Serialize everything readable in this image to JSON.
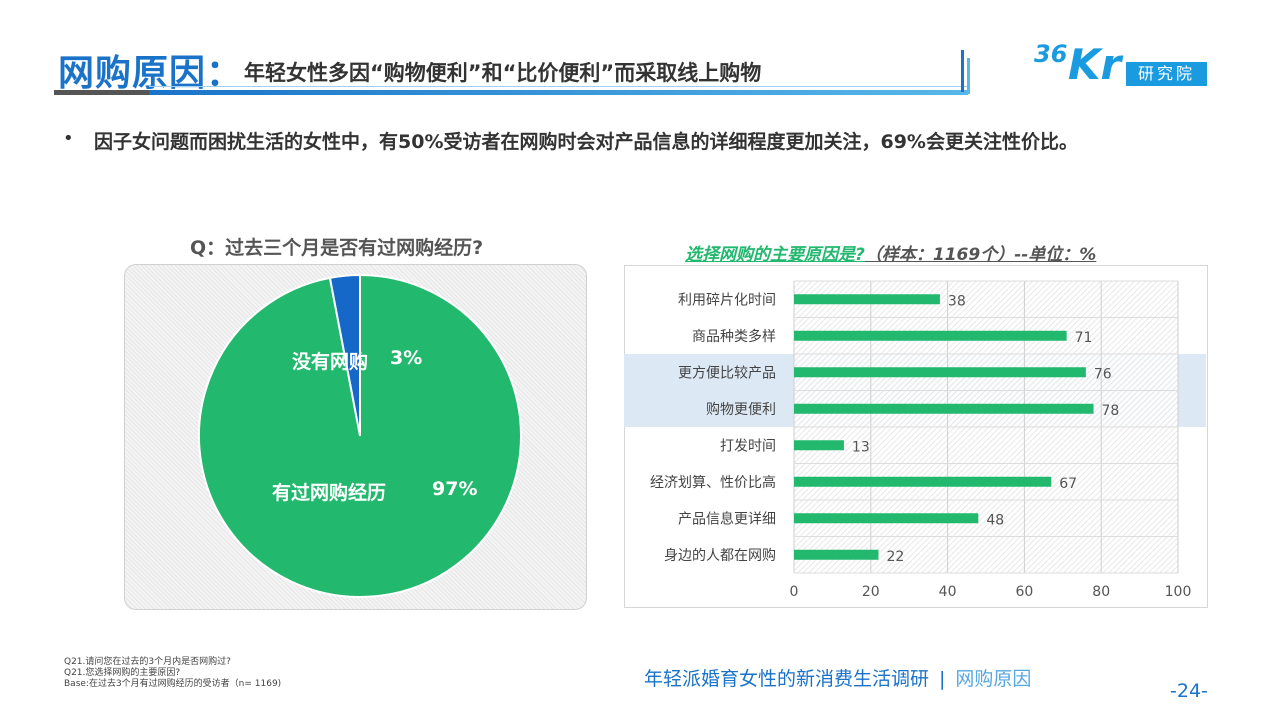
{
  "header": {
    "title_main": "网购原因：",
    "title_sub": "年轻女性多因“购物便利”和“比价便利”而采取线上购物",
    "logo_36": "36",
    "logo_kr": "Kr",
    "logo_box": "研究院"
  },
  "bullet": {
    "dot": "•",
    "text": "因子女问题而困扰生活的女性中，有50%受访者在网购时会对产品信息的详细程度更加关注，69%会更关注性价比。"
  },
  "pie": {
    "title": "Q：过去三个月是否有过网购经历?",
    "label_no": "没有网购",
    "pct_no": "3%",
    "label_yes": "有过网购经历",
    "pct_yes": "97%"
  },
  "bar": {
    "title_q": "选择网购的主要原因是?",
    "title_rest": "（样本：1169个）--单位：%"
  },
  "colors": {
    "green": "#22b86e",
    "blue": "#1668c8",
    "brand": "#1a73c8",
    "highlight": "#dce9f5"
  },
  "chart_data": [
    {
      "type": "pie",
      "title": "Q：过去三个月是否有过网购经历?",
      "slices": [
        {
          "name": "有过网购经历",
          "value": 97
        },
        {
          "name": "没有网购",
          "value": 3
        }
      ]
    },
    {
      "type": "bar",
      "orientation": "horizontal",
      "title": "选择网购的主要原因是?（样本：1169个）--单位：%",
      "categories": [
        "利用碎片化时间",
        "商品种类多样",
        "更方便比较产品",
        "购物更便利",
        "打发时间",
        "经济划算、性价比高",
        "产品信息更详细",
        "身边的人都在网购"
      ],
      "values": [
        38,
        71,
        76,
        78,
        13,
        67,
        48,
        22
      ],
      "highlighted": [
        "更方便比较产品",
        "购物更便利"
      ],
      "xlim": [
        0,
        100
      ],
      "xticks": [
        0,
        20,
        40,
        60,
        80,
        100
      ],
      "grid": true
    }
  ],
  "footer": {
    "notes": [
      "Q21.请问您在过去的3个月内是否网购过?",
      "Q21.您选择网购的主要原因?",
      "Base:在过去3个月有过网购经历的受访者（n= 1169)"
    ],
    "report_title": "年轻派婚育女性的新消费生活调研",
    "separator": "|",
    "section": "网购原因",
    "page": "-24-"
  }
}
